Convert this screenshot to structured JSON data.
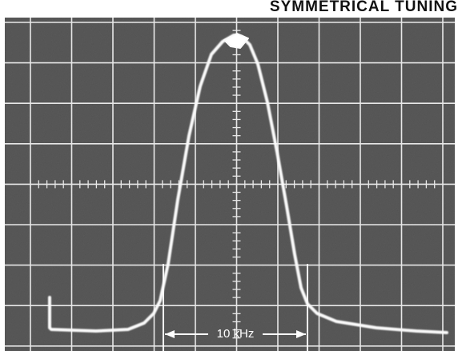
{
  "header": {
    "title": "SYMMETRICAL TUNING"
  },
  "annotation": {
    "label": "10 kHz"
  }
}
